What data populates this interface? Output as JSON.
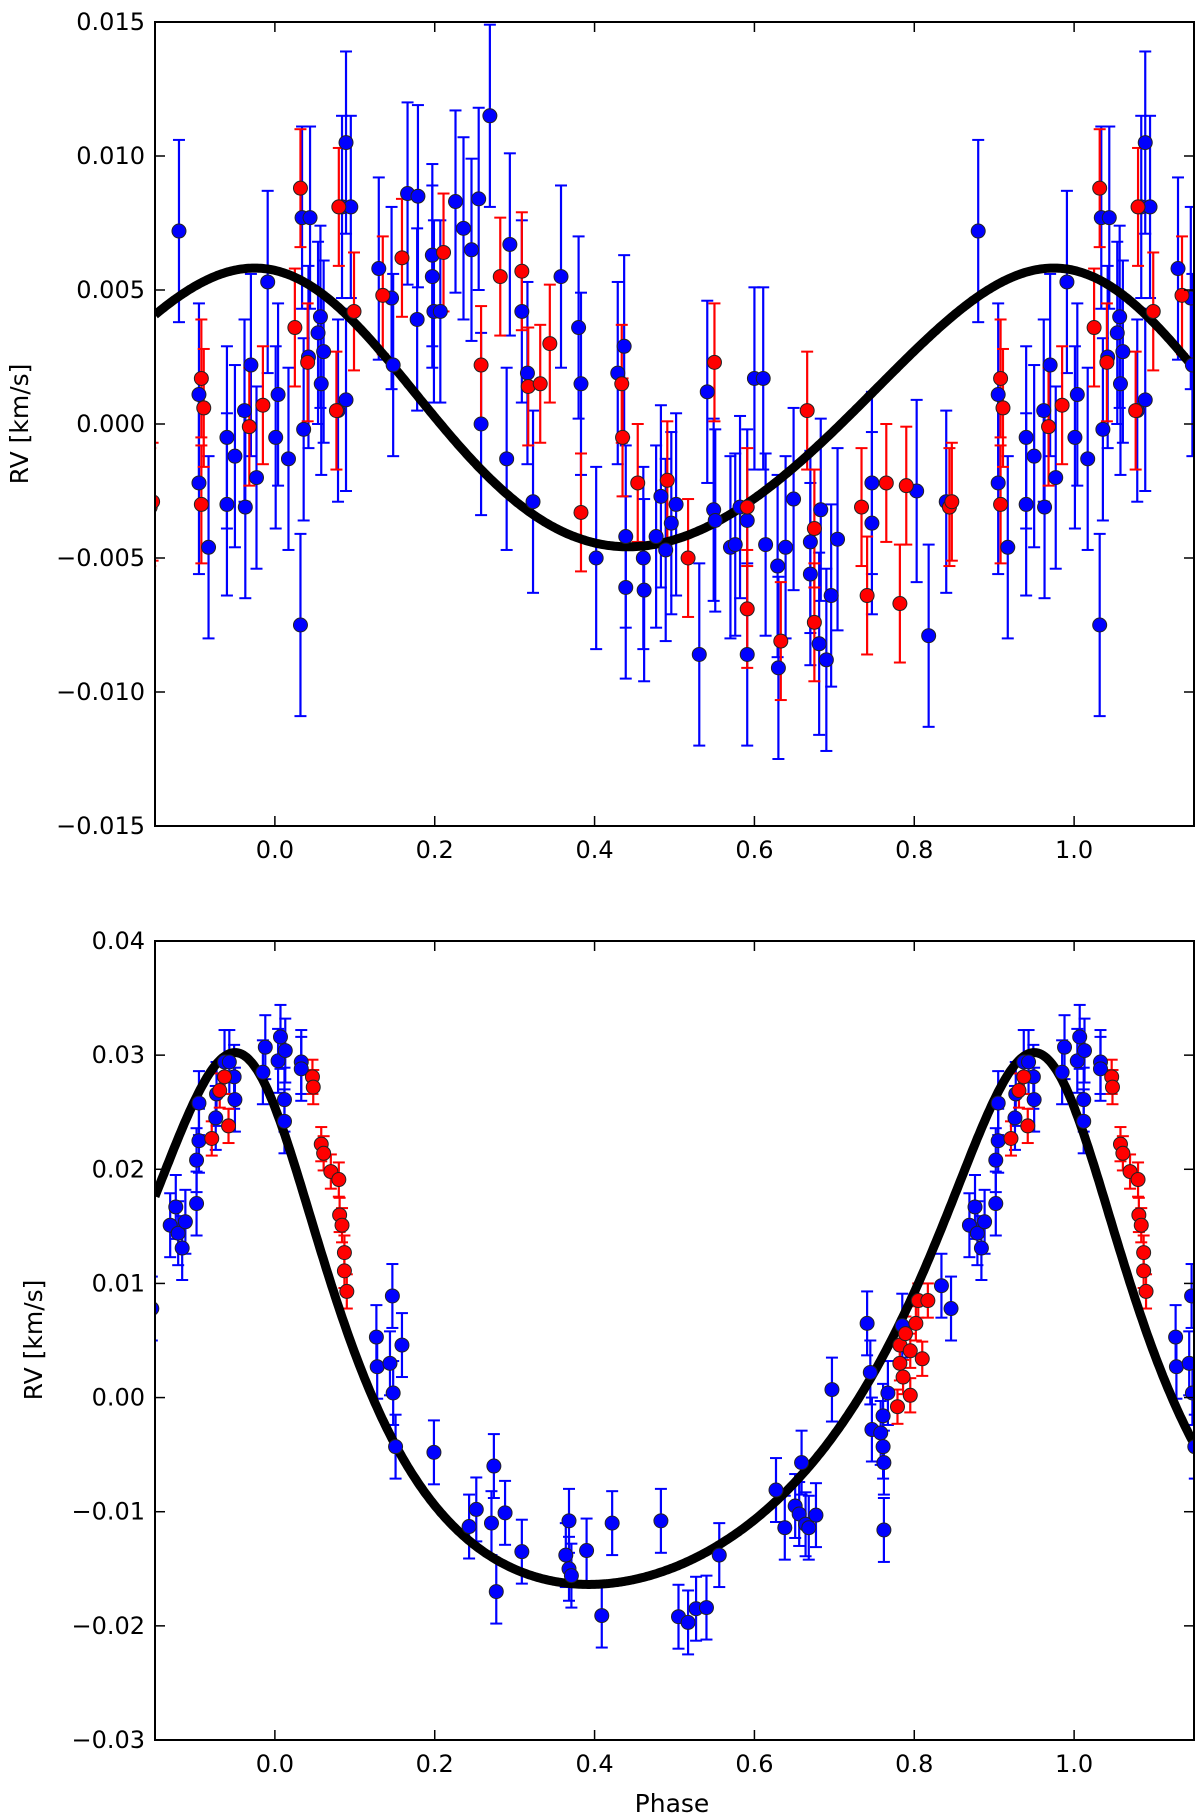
{
  "chart_data": [
    {
      "type": "scatter",
      "title": "",
      "xlabel": "",
      "ylabel": "RV [km/s]",
      "xlim": [
        -0.15,
        1.15
      ],
      "ylim": [
        -0.015,
        0.015
      ],
      "grid": false,
      "phase_repeat_period": 1,
      "xticks": [
        0.0,
        0.2,
        0.4,
        0.6,
        0.8,
        1.0
      ],
      "xtick_labels": [
        "0.0",
        "0.2",
        "0.4",
        "0.6",
        "0.8",
        "1.0"
      ],
      "yticks": [
        0.015,
        0.01,
        0.005,
        0.0,
        -0.005,
        -0.01,
        -0.015
      ],
      "ytick_labels": [
        "0.015",
        "0.010",
        "0.005",
        "0.000",
        "−0.005",
        "−0.010",
        "−0.015"
      ],
      "model": {
        "type": "keplerian",
        "K": 0.0052,
        "e": 0.08,
        "omega_deg": 40,
        "gamma": 0.0003,
        "periastron_phase": 0.07,
        "color": "#000000"
      },
      "series": [
        {
          "name": "blue",
          "color": "#0000ff",
          "err": 0.0034,
          "points": [
            [
              0.88,
              0.0072
            ],
            [
              0.905,
              0.0011
            ],
            [
              0.905,
              -0.0022
            ],
            [
              0.917,
              -0.0046
            ],
            [
              0.94,
              -0.0005
            ],
            [
              0.94,
              -0.003
            ],
            [
              0.95,
              -0.0012
            ],
            [
              0.962,
              0.0005
            ],
            [
              0.963,
              -0.0031
            ],
            [
              0.97,
              0.0022
            ],
            [
              0.977,
              -0.002
            ],
            [
              0.991,
              0.0053
            ],
            [
              0.001,
              -0.0005
            ],
            [
              0.004,
              0.0011
            ],
            [
              0.017,
              -0.0013
            ],
            [
              0.032,
              -0.0075
            ],
            [
              0.034,
              0.0077
            ],
            [
              0.036,
              -0.0002
            ],
            [
              0.044,
              0.0077
            ],
            [
              0.042,
              0.0025
            ],
            [
              0.054,
              0.0034
            ],
            [
              0.057,
              0.004
            ],
            [
              0.061,
              0.0027
            ],
            [
              0.058,
              0.0015
            ],
            [
              0.079,
              0.0005
            ],
            [
              0.084,
              0.0081
            ],
            [
              0.089,
              0.0105
            ],
            [
              0.089,
              0.0009
            ],
            [
              0.095,
              0.0081
            ],
            [
              0.13,
              0.0058
            ],
            [
              0.146,
              0.0047
            ],
            [
              0.148,
              0.0022
            ],
            [
              0.166,
              0.0086
            ],
            [
              0.178,
              0.0039
            ],
            [
              0.179,
              0.0085
            ],
            [
              0.197,
              0.0063
            ],
            [
              0.197,
              0.0055
            ],
            [
              0.199,
              0.0042
            ],
            [
              0.207,
              0.0042
            ],
            [
              0.226,
              0.0083
            ],
            [
              0.236,
              0.0073
            ],
            [
              0.246,
              0.0065
            ],
            [
              0.255,
              0.0084
            ],
            [
              0.258,
              0.0
            ],
            [
              0.269,
              0.0115
            ],
            [
              0.29,
              -0.0013
            ],
            [
              0.294,
              0.0067
            ],
            [
              0.309,
              0.0042
            ],
            [
              0.316,
              0.0019
            ],
            [
              0.323,
              -0.0029
            ],
            [
              0.358,
              0.0055
            ],
            [
              0.38,
              0.0036
            ],
            [
              0.383,
              0.0015
            ],
            [
              0.402,
              -0.005
            ],
            [
              0.429,
              0.0019
            ],
            [
              0.437,
              0.0029
            ],
            [
              0.439,
              -0.0042
            ],
            [
              0.439,
              -0.0061
            ],
            [
              0.461,
              -0.005
            ],
            [
              0.462,
              -0.0062
            ],
            [
              0.477,
              -0.0042
            ],
            [
              0.483,
              -0.0027
            ],
            [
              0.489,
              -0.0047
            ],
            [
              0.496,
              -0.0037
            ],
            [
              0.502,
              -0.003
            ],
            [
              0.531,
              -0.0086
            ],
            [
              0.541,
              0.0012
            ],
            [
              0.549,
              -0.0032
            ],
            [
              0.551,
              -0.0036
            ],
            [
              0.57,
              -0.0046
            ],
            [
              0.576,
              -0.0045
            ],
            [
              0.582,
              -0.0031
            ],
            [
              0.591,
              -0.0086
            ],
            [
              0.591,
              -0.0036
            ],
            [
              0.6,
              0.0017
            ],
            [
              0.611,
              0.0017
            ],
            [
              0.614,
              -0.0045
            ],
            [
              0.629,
              -0.0053
            ],
            [
              0.63,
              -0.0091
            ],
            [
              0.639,
              -0.0046
            ],
            [
              0.649,
              -0.0028
            ],
            [
              0.67,
              -0.0044
            ],
            [
              0.67,
              -0.0056
            ],
            [
              0.683,
              -0.0032
            ],
            [
              0.681,
              -0.0082
            ],
            [
              0.69,
              -0.0088
            ],
            [
              0.696,
              -0.0064
            ],
            [
              0.704,
              -0.0043
            ],
            [
              0.747,
              -0.0022
            ],
            [
              0.747,
              -0.0037
            ],
            [
              0.803,
              -0.0025
            ],
            [
              0.818,
              -0.0079
            ],
            [
              0.84,
              -0.0029
            ]
          ]
        },
        {
          "name": "red",
          "color": "#ff0000",
          "err": 0.0022,
          "points": [
            [
              0.908,
              0.0017
            ],
            [
              0.908,
              -0.003
            ],
            [
              0.911,
              0.0006
            ],
            [
              0.968,
              -0.0001
            ],
            [
              0.985,
              0.0007
            ],
            [
              0.025,
              0.0036
            ],
            [
              0.032,
              0.0088
            ],
            [
              0.041,
              0.0023
            ],
            [
              0.08,
              0.0081
            ],
            [
              0.077,
              0.0005
            ],
            [
              0.099,
              0.0042
            ],
            [
              0.135,
              0.0048
            ],
            [
              0.159,
              0.0062
            ],
            [
              0.211,
              0.0064
            ],
            [
              0.258,
              0.0022
            ],
            [
              0.282,
              0.0055
            ],
            [
              0.309,
              0.0057
            ],
            [
              0.317,
              0.0014
            ],
            [
              0.332,
              0.0015
            ],
            [
              0.344,
              0.003
            ],
            [
              0.383,
              -0.0033
            ],
            [
              0.435,
              -0.0005
            ],
            [
              0.434,
              0.0015
            ],
            [
              0.454,
              -0.0022
            ],
            [
              0.491,
              -0.0021
            ],
            [
              0.517,
              -0.005
            ],
            [
              0.55,
              0.0023
            ],
            [
              0.591,
              -0.0031
            ],
            [
              0.591,
              -0.0069
            ],
            [
              0.633,
              -0.0081
            ],
            [
              0.666,
              0.0005
            ],
            [
              0.675,
              -0.0039
            ],
            [
              0.675,
              -0.0074
            ],
            [
              0.734,
              -0.0031
            ],
            [
              0.741,
              -0.0064
            ],
            [
              0.765,
              -0.0022
            ],
            [
              0.782,
              -0.0067
            ],
            [
              0.79,
              -0.0023
            ],
            [
              0.844,
              -0.0031
            ],
            [
              0.847,
              -0.0029
            ]
          ]
        }
      ]
    },
    {
      "type": "scatter",
      "title": "",
      "xlabel": "Phase",
      "ylabel": "RV [km/s]",
      "xlim": [
        -0.15,
        1.15
      ],
      "ylim": [
        -0.03,
        0.04
      ],
      "grid": false,
      "phase_repeat_period": 1,
      "xticks": [
        0.0,
        0.2,
        0.4,
        0.6,
        0.8,
        1.0
      ],
      "xtick_labels": [
        "0.0",
        "0.2",
        "0.4",
        "0.6",
        "0.8",
        "1.0"
      ],
      "yticks": [
        0.04,
        0.03,
        0.02,
        0.01,
        0.0,
        -0.01,
        -0.02,
        -0.03
      ],
      "ytick_labels": [
        "0.04",
        "0.03",
        "0.02",
        "0.01",
        "0.00",
        "−0.01",
        "−0.02",
        "−0.03"
      ],
      "model": {
        "type": "keplerian",
        "K": 0.0233,
        "e": 0.33,
        "omega_deg": 15,
        "gamma": -0.0005,
        "periastron_phase": -0.03,
        "color": "#000000"
      },
      "series": [
        {
          "name": "blue",
          "color": "#0000ff",
          "err": 0.0028,
          "points": [
            [
              0.869,
              0.0151
            ],
            [
              0.876,
              0.0167
            ],
            [
              0.879,
              0.0144
            ],
            [
              0.884,
              0.0131
            ],
            [
              0.888,
              0.0154
            ],
            [
              0.902,
              0.017
            ],
            [
              0.902,
              0.0208
            ],
            [
              0.905,
              0.0258
            ],
            [
              0.905,
              0.0225
            ],
            [
              0.926,
              0.0245
            ],
            [
              0.927,
              0.0266
            ],
            [
              0.937,
              0.0294
            ],
            [
              0.943,
              0.0294
            ],
            [
              0.95,
              0.0261
            ],
            [
              0.949,
              0.0281
            ],
            [
              0.985,
              0.0285
            ],
            [
              0.988,
              0.0307
            ],
            [
              0.007,
              0.0316
            ],
            [
              0.004,
              0.0295
            ],
            [
              0.012,
              0.0242
            ],
            [
              0.012,
              0.0261
            ],
            [
              0.013,
              0.0304
            ],
            [
              0.033,
              0.0294
            ],
            [
              0.033,
              0.0288
            ],
            [
              0.147,
              0.0089
            ],
            [
              0.127,
              0.0053
            ],
            [
              0.128,
              0.0027
            ],
            [
              0.144,
              0.003
            ],
            [
              0.148,
              0.0004
            ],
            [
              0.151,
              -0.0043
            ],
            [
              0.159,
              0.0046
            ],
            [
              0.199,
              -0.0048
            ],
            [
              0.243,
              -0.0113
            ],
            [
              0.252,
              -0.0098
            ],
            [
              0.271,
              -0.011
            ],
            [
              0.274,
              -0.006
            ],
            [
              0.277,
              -0.017
            ],
            [
              0.288,
              -0.0101
            ],
            [
              0.309,
              -0.0135
            ],
            [
              0.364,
              -0.0138
            ],
            [
              0.368,
              -0.0108
            ],
            [
              0.368,
              -0.015
            ],
            [
              0.371,
              -0.0156
            ],
            [
              0.39,
              -0.0134
            ],
            [
              0.409,
              -0.0191
            ],
            [
              0.422,
              -0.011
            ],
            [
              0.483,
              -0.0108
            ],
            [
              0.505,
              -0.0192
            ],
            [
              0.517,
              -0.0197
            ],
            [
              0.527,
              -0.0185
            ],
            [
              0.54,
              -0.0184
            ],
            [
              0.556,
              -0.0138
            ],
            [
              0.627,
              -0.0081
            ],
            [
              0.638,
              -0.0114
            ],
            [
              0.651,
              -0.0095
            ],
            [
              0.656,
              -0.0102
            ],
            [
              0.659,
              -0.0057
            ],
            [
              0.664,
              -0.0111
            ],
            [
              0.668,
              -0.0114
            ],
            [
              0.677,
              -0.0103
            ],
            [
              0.697,
              0.0007
            ],
            [
              0.741,
              0.0065
            ],
            [
              0.745,
              0.0022
            ],
            [
              0.747,
              -0.0028
            ],
            [
              0.758,
              -0.0031
            ],
            [
              0.761,
              -0.0016
            ],
            [
              0.761,
              -0.0043
            ],
            [
              0.762,
              -0.0057
            ],
            [
              0.762,
              -0.0116
            ],
            [
              0.767,
              0.0004
            ],
            [
              0.785,
              0.0063
            ],
            [
              0.834,
              0.0098
            ],
            [
              0.846,
              0.0078
            ]
          ]
        },
        {
          "name": "red",
          "color": "#ff0000",
          "err": 0.0015,
          "points": [
            [
              0.921,
              0.0227
            ],
            [
              0.931,
              0.0269
            ],
            [
              0.937,
              0.0281
            ],
            [
              0.942,
              0.0238
            ],
            [
              0.047,
              0.0281
            ],
            [
              0.048,
              0.0272
            ],
            [
              0.058,
              0.0222
            ],
            [
              0.061,
              0.0214
            ],
            [
              0.07,
              0.0198
            ],
            [
              0.08,
              0.0191
            ],
            [
              0.081,
              0.016
            ],
            [
              0.084,
              0.0151
            ],
            [
              0.087,
              0.0127
            ],
            [
              0.087,
              0.0111
            ],
            [
              0.09,
              0.0093
            ],
            [
              0.779,
              -0.0008
            ],
            [
              0.782,
              0.003
            ],
            [
              0.782,
              0.0046
            ],
            [
              0.786,
              0.0018
            ],
            [
              0.789,
              0.0056
            ],
            [
              0.795,
              0.0041
            ],
            [
              0.795,
              0.0002
            ],
            [
              0.802,
              0.0065
            ],
            [
              0.805,
              0.0085
            ],
            [
              0.81,
              0.0034
            ],
            [
              0.817,
              0.0085
            ]
          ]
        }
      ]
    }
  ]
}
